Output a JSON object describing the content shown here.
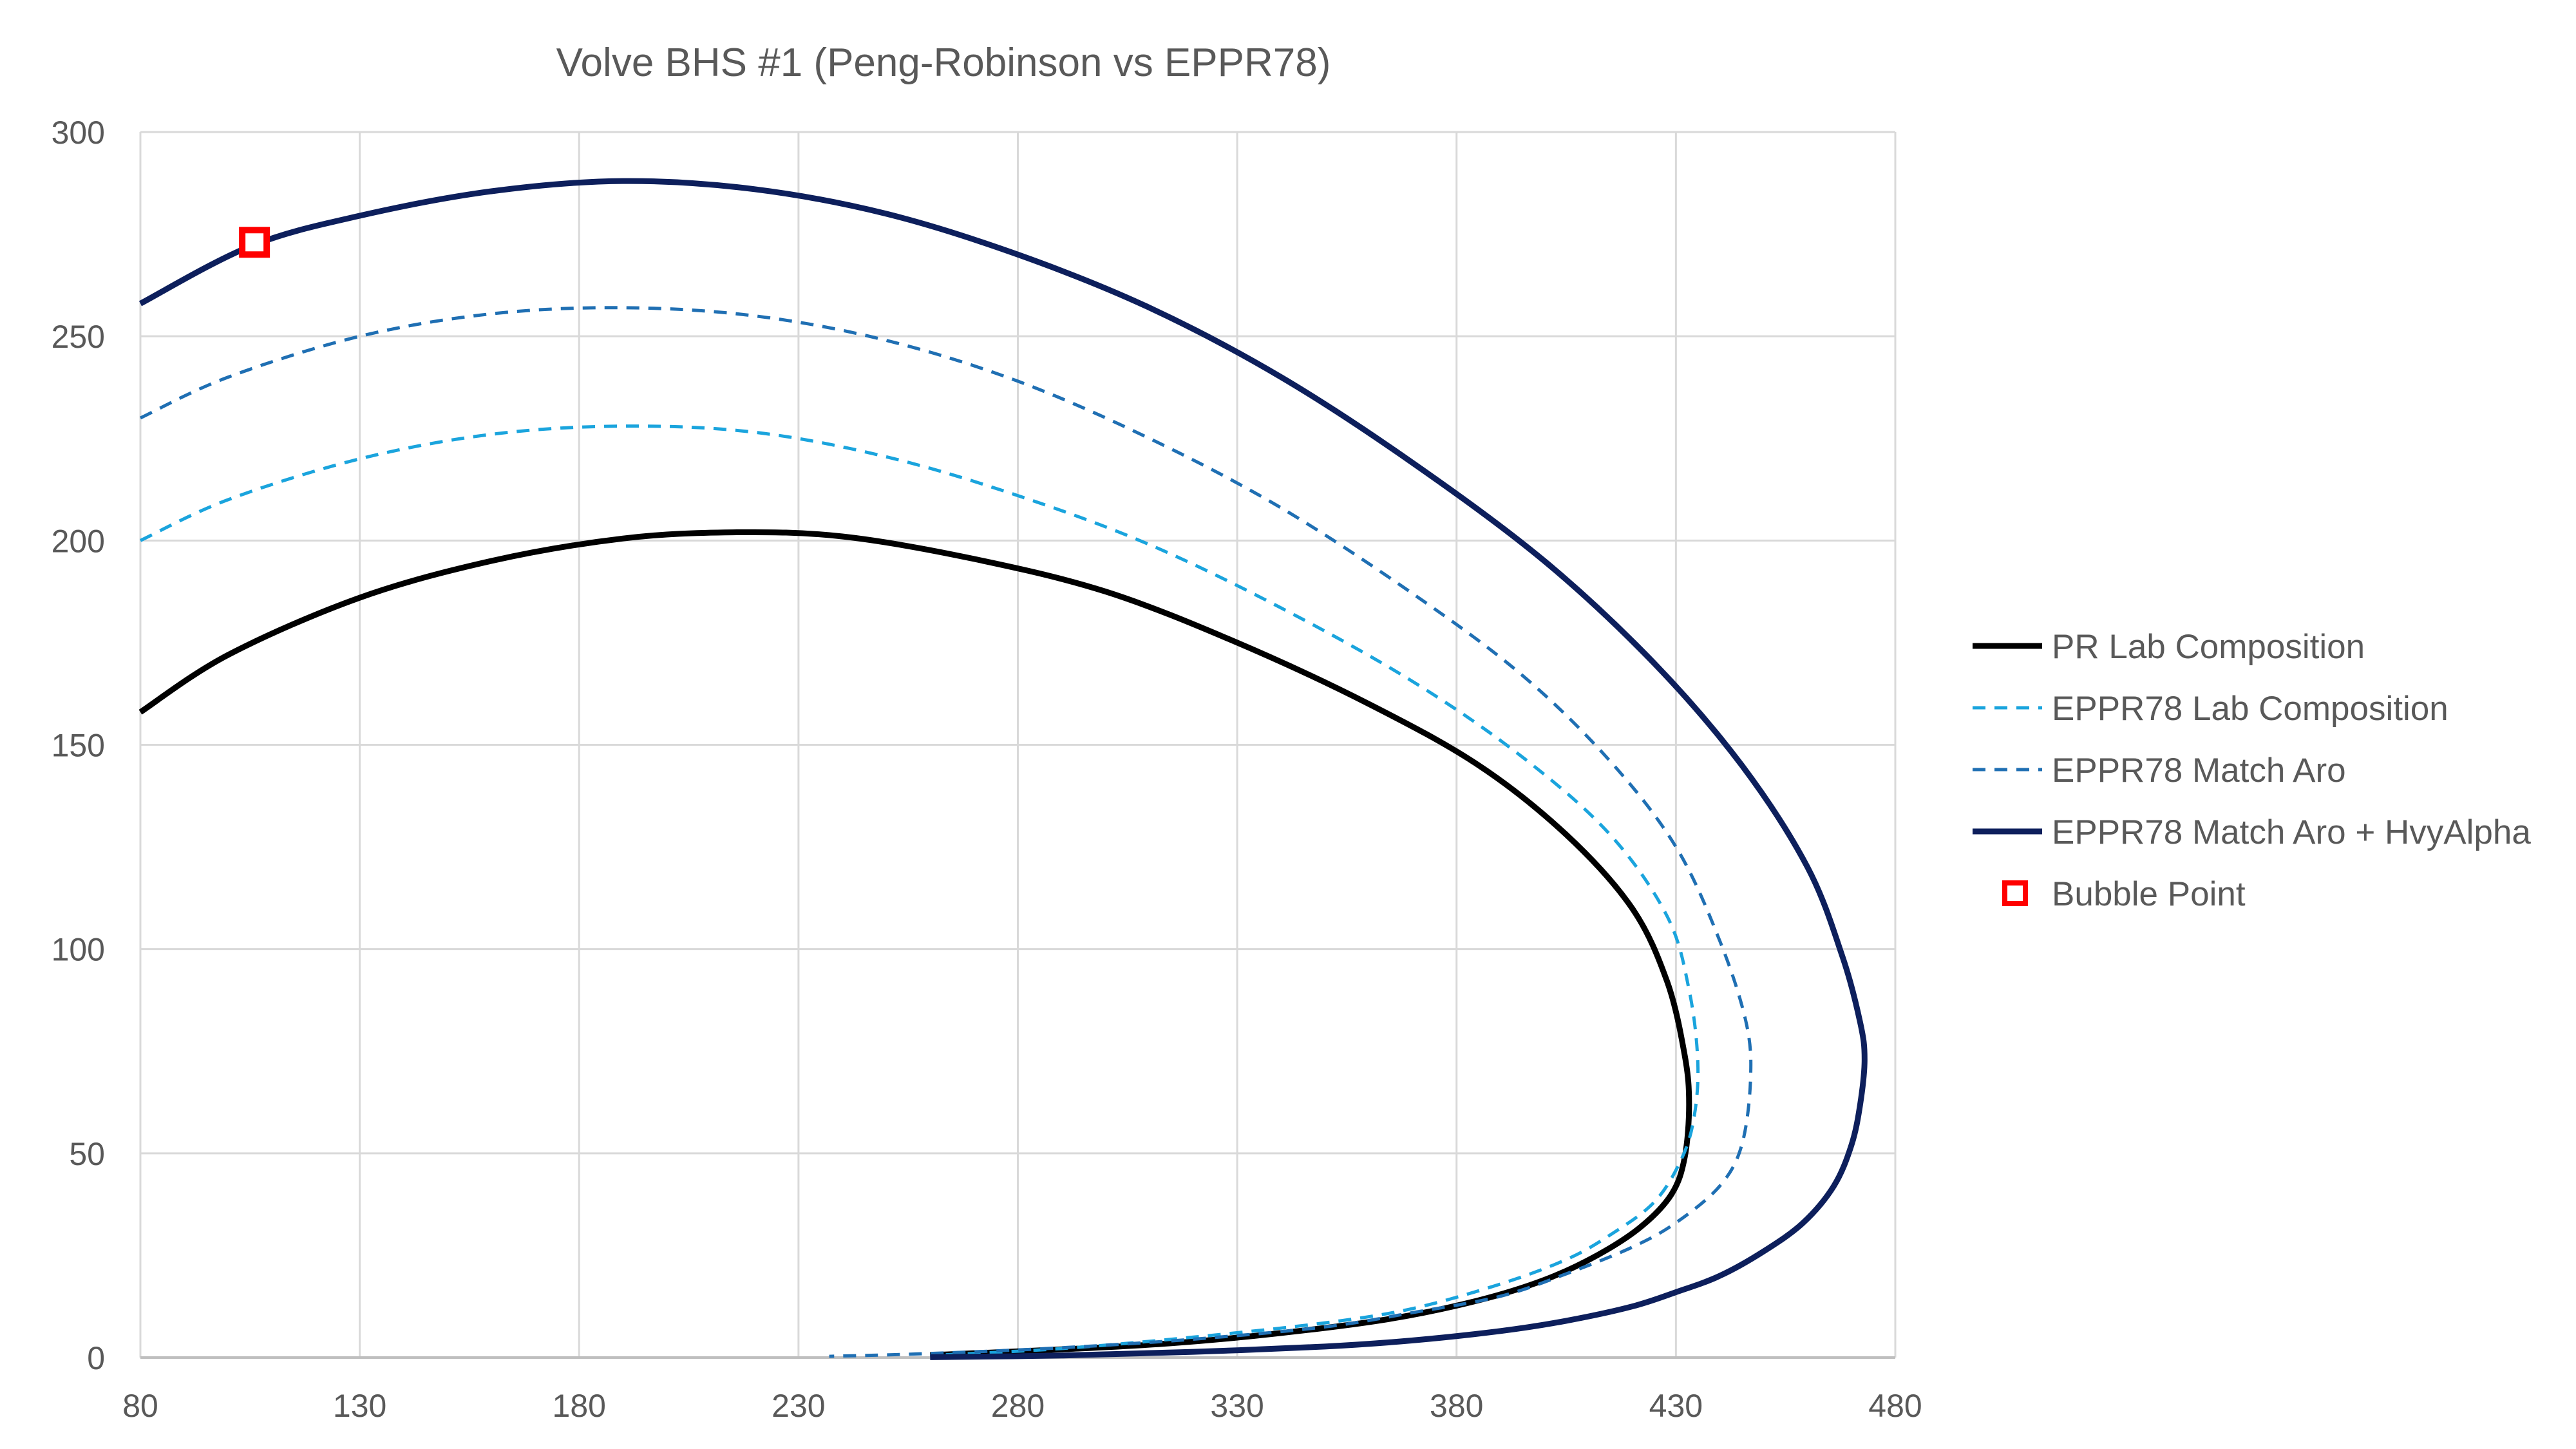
{
  "chart_data": {
    "type": "line",
    "title": "Volve BHS #1 (Peng-Robinson vs EPPR78)",
    "xlabel": "",
    "ylabel": "",
    "xlim": [
      80,
      480
    ],
    "ylim": [
      0,
      300
    ],
    "xticks": [
      80,
      130,
      180,
      230,
      280,
      330,
      380,
      430,
      480
    ],
    "yticks": [
      0,
      50,
      100,
      150,
      200,
      250,
      300
    ],
    "grid": true,
    "legend_position": "right",
    "series": [
      {
        "name": "PR Lab Composition",
        "color": "#000000",
        "style": "solid",
        "x": [
          80,
          100,
          130,
          160,
          190,
          215,
          240,
          270,
          300,
          330,
          360,
          385,
          405,
          420,
          428,
          432,
          433,
          432,
          429,
          422,
          412,
          400,
          385,
          365,
          340,
          315,
          290,
          260
        ],
        "y": [
          158,
          172,
          186,
          195,
          200.5,
          202,
          201,
          195.5,
          187.5,
          175,
          160,
          145,
          128,
          110,
          92,
          74,
          62,
          49,
          40,
          32,
          25,
          19,
          14,
          9.5,
          6,
          3.5,
          2,
          0.6
        ]
      },
      {
        "name": "EPPR78 Lab Composition",
        "color": "#1aa4dd",
        "style": "dashed",
        "x": [
          80,
          100,
          130,
          160,
          190,
          220,
          250,
          280,
          310,
          340,
          370,
          395,
          415,
          428,
          433,
          435,
          434,
          431,
          425,
          415,
          405,
          390,
          370,
          350,
          320,
          290,
          260
        ],
        "y": [
          200,
          210,
          220,
          226,
          228,
          226.5,
          220.5,
          211,
          199,
          183.5,
          165.5,
          147,
          128,
          108,
          90,
          72,
          58,
          48,
          38,
          30,
          24,
          18,
          12,
          8.5,
          5,
          2.2,
          0.5
        ]
      },
      {
        "name": "EPPR78 Match Aro",
        "color": "#1f6fb3",
        "style": "dashed",
        "x": [
          80,
          100,
          130,
          160,
          190,
          220,
          250,
          280,
          310,
          340,
          370,
          395,
          415,
          430,
          440,
          446,
          447,
          445,
          440,
          430,
          420,
          405,
          390,
          370,
          350,
          320,
          290,
          260,
          237
        ],
        "y": [
          230,
          240,
          250,
          255.5,
          257,
          255,
          249,
          239,
          225,
          208,
          187,
          167,
          146,
          125,
          102,
          82,
          68,
          52,
          42,
          33,
          27,
          20.5,
          15,
          11,
          7.5,
          4.5,
          2.4,
          1,
          0.3
        ]
      },
      {
        "name": "EPPR78 Match Aro + HvyAlpha",
        "color": "#0d1f5c",
        "style": "solid",
        "x": [
          80,
          105,
          130,
          160,
          190,
          220,
          250,
          280,
          310,
          340,
          370,
          400,
          425,
          445,
          460,
          468,
          472,
          473,
          472,
          470,
          466,
          459,
          450,
          440,
          430,
          420,
          405,
          390,
          370,
          350,
          320,
          290,
          260
        ],
        "y": [
          258,
          272,
          279.5,
          285.5,
          288,
          286,
          280,
          270,
          257,
          240,
          219,
          195,
          170,
          145,
          120,
          98,
          82,
          73,
          62,
          52,
          42,
          33,
          26,
          20,
          16,
          12.5,
          9,
          6.5,
          4.2,
          2.7,
          1.4,
          0.5,
          0.1
        ]
      },
      {
        "name": "Bubble Point",
        "color": "#ff0000",
        "style": "marker",
        "x": [
          106
        ],
        "y": [
          273
        ]
      }
    ]
  }
}
